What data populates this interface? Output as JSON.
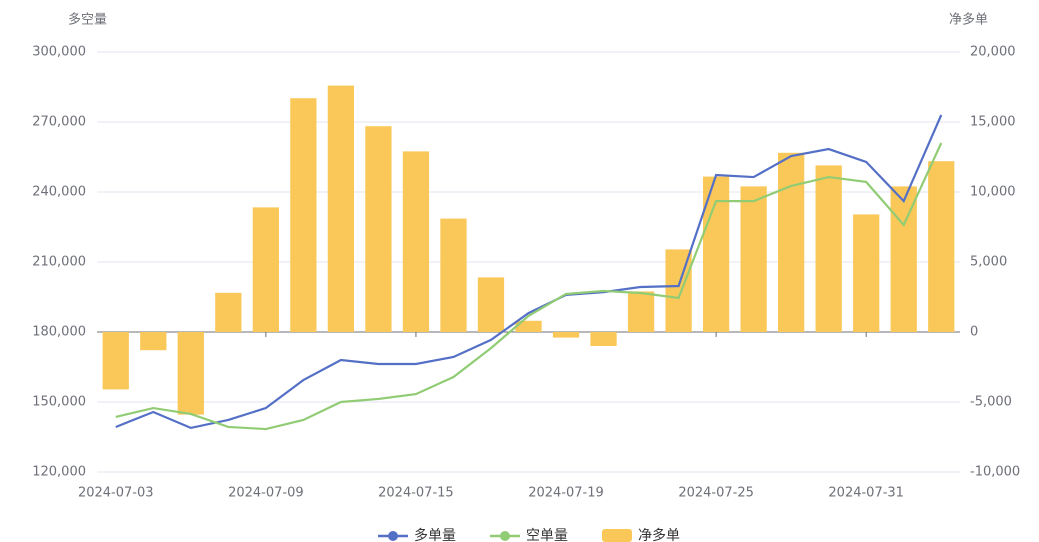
{
  "chart_data": {
    "type": "bar-line",
    "y_title": "多空量",
    "y2_title": "净多单",
    "categories": [
      "2024-07-03",
      null,
      null,
      null,
      "2024-07-09",
      null,
      null,
      null,
      "2024-07-15",
      null,
      null,
      null,
      "2024-07-19",
      null,
      null,
      null,
      "2024-07-25",
      null,
      null,
      null,
      "2024-07-31",
      null,
      null
    ],
    "ylim": [
      120000,
      300000
    ],
    "yticks": [
      {
        "value": 120000,
        "label": "120,000"
      },
      {
        "value": 150000,
        "label": "150,000"
      },
      {
        "value": 180000,
        "label": "180,000"
      },
      {
        "value": 210000,
        "label": "210,000"
      },
      {
        "value": 240000,
        "label": "240,000"
      },
      {
        "value": 270000,
        "label": "270,000"
      },
      {
        "value": 300000,
        "label": "300,000"
      }
    ],
    "y2lim": [
      -10000,
      20000
    ],
    "y2ticks": [
      {
        "value": -10000,
        "label": "-10,000"
      },
      {
        "value": -5000,
        "label": "-5,000"
      },
      0,
      {
        "value": 5000,
        "label": "5,000"
      },
      {
        "value": 10000,
        "label": "10,000"
      },
      {
        "value": 15000,
        "label": "15,000"
      },
      {
        "value": 20000,
        "label": "20,000"
      }
    ],
    "grid": true,
    "series": [
      {
        "name": "多单量",
        "type": "line",
        "color": "#5470c6",
        "values": [
          139300,
          145700,
          138900,
          142300,
          147400,
          159400,
          168000,
          166300,
          166300,
          169300,
          176600,
          188100,
          195900,
          197100,
          199300,
          199700,
          247300,
          246400,
          255400,
          258400,
          252900,
          236100,
          273000
        ]
      },
      {
        "name": "空单量",
        "type": "line",
        "color": "#91cc75",
        "values": [
          143600,
          147400,
          144900,
          139300,
          138400,
          142300,
          150000,
          151300,
          153400,
          160700,
          173100,
          186900,
          196300,
          197600,
          196700,
          194600,
          236100,
          236100,
          242600,
          246400,
          244300,
          225900,
          261000
        ]
      },
      {
        "name": "净多单",
        "type": "bar",
        "axis": "y2",
        "color": "#fac858",
        "values": [
          -4100,
          -1300,
          -5900,
          2800,
          8900,
          16700,
          17600,
          14700,
          12900,
          8100,
          3900,
          800,
          -400,
          -1000,
          2900,
          5900,
          11100,
          10400,
          12800,
          11900,
          8400,
          10400,
          12200
        ]
      }
    ]
  }
}
